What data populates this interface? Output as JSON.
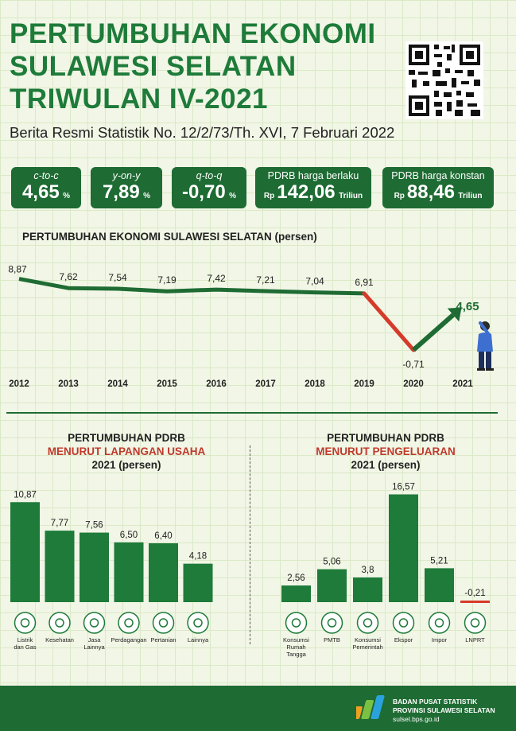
{
  "header": {
    "title_line1": "PERTUMBUHAN EKONOMI",
    "title_line2": "SULAWESI SELATAN",
    "title_line3": "TRIWULAN IV-2021",
    "subtitle": "Berita Resmi Statistik No. 12/2/73/Th. XVI, 7 Februari 2022"
  },
  "kpis": [
    {
      "label": "c-to-c",
      "value": "4,65",
      "unit": "%"
    },
    {
      "label": "y-on-y",
      "value": "7,89",
      "unit": "%"
    },
    {
      "label": "q-to-q",
      "value": "-0,70",
      "unit": "%"
    },
    {
      "label": "PDRB harga berlaku",
      "prefix": "Rp",
      "value": "142,06",
      "unit": "Triliun"
    },
    {
      "label": "PDRB harga konstan",
      "prefix": "Rp",
      "value": "88,46",
      "unit": "Triliun"
    }
  ],
  "colors": {
    "green": "#1e6b33",
    "red": "#d63a2a",
    "bar": "#1e7b3a",
    "bg": "#f1f6e6"
  },
  "chart_data": [
    {
      "type": "line",
      "title": "PERTUMBUHAN EKONOMI SULAWESI SELATAN (persen)",
      "x": [
        "2012",
        "2013",
        "2014",
        "2015",
        "2016",
        "2017",
        "2018",
        "2019",
        "2020",
        "2021"
      ],
      "values": [
        8.87,
        7.62,
        7.54,
        7.19,
        7.42,
        7.21,
        7.04,
        6.91,
        -0.71,
        4.65
      ],
      "labels": [
        "8,87",
        "7,62",
        "7,54",
        "7,19",
        "7,42",
        "7,21",
        "7,04",
        "6,91",
        "-0,71",
        "4,65"
      ],
      "ylim": [
        -2,
        10
      ]
    },
    {
      "type": "bar",
      "title_line1": "PERTUMBUHAN PDRB",
      "title_line2": "MENURUT LAPANGAN USAHA",
      "title_line3": "2021 (persen)",
      "categories": [
        "Listrik dan Gas",
        "Kesehatan",
        "Jasa Lainnya",
        "Perdagangan",
        "Pertanian",
        "Lainnya"
      ],
      "values": [
        10.87,
        7.77,
        7.56,
        6.5,
        6.4,
        4.18
      ],
      "labels": [
        "10,87",
        "7,77",
        "7,56",
        "6,50",
        "6,40",
        "4,18"
      ],
      "icons": [
        "bulb-icon",
        "wallet-icon",
        "tower-icon",
        "cart-icon",
        "plant-icon",
        "building-icon"
      ],
      "ylim": [
        0,
        11.5
      ]
    },
    {
      "type": "bar",
      "title_line1": "PERTUMBUHAN PDRB",
      "title_line2": "MENURUT PENGELUARAN",
      "title_line3": "2021 (persen)",
      "categories": [
        "Konsumsi Rumah Tangga",
        "PMTB",
        "Konsumsi Pemerintah",
        "Ekspor",
        "Impor",
        "LNPRT"
      ],
      "values": [
        2.56,
        5.06,
        3.8,
        16.57,
        5.21,
        -0.21
      ],
      "labels": [
        "2,56",
        "5,06",
        "3,8",
        "16,57",
        "5,21",
        "-0,21"
      ],
      "icons": [
        "basket-icon",
        "truck-icon",
        "government-icon",
        "ship-icon",
        "import-ship-icon",
        "person-icon"
      ],
      "ylim": [
        0,
        17
      ]
    }
  ],
  "footer": {
    "org_line1": "BADAN PUSAT STATISTIK",
    "org_line2": "PROVINSI SULAWESI SELATAN",
    "url": "sulsel.bps.go.id"
  }
}
